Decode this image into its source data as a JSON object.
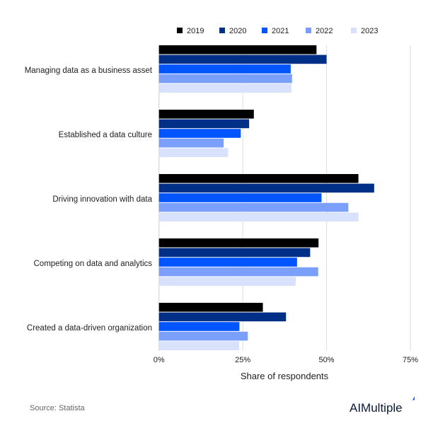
{
  "chart_data": {
    "type": "bar",
    "orientation": "horizontal",
    "categories": [
      "Managing data as a business asset",
      "Established a data culture",
      "Driving innovation with data",
      "Competing on data and analytics",
      "Created a data-driven organization"
    ],
    "series": [
      {
        "name": "2019",
        "color": "#000000",
        "values": [
          47,
          28.3,
          59.5,
          47.6,
          31
        ]
      },
      {
        "name": "2020",
        "color": "#002f87",
        "values": [
          50,
          26.9,
          64.2,
          45.1,
          37.9
        ]
      },
      {
        "name": "2021",
        "color": "#0055ff",
        "values": [
          39.3,
          24.4,
          48.5,
          41.2,
          24
        ]
      },
      {
        "name": "2022",
        "color": "#7aa0fb",
        "values": [
          39.7,
          19.3,
          56.5,
          47.5,
          26.5
        ]
      },
      {
        "name": "2023",
        "color": "#d8e2fc",
        "values": [
          39.5,
          20.6,
          59.5,
          40.8,
          23.9
        ]
      }
    ],
    "xlabel": "Share of respondents",
    "xlim": [
      0,
      75
    ],
    "xticks": [
      0,
      25,
      50,
      75
    ],
    "xtick_labels": [
      "0%",
      "25%",
      "50%",
      "75%"
    ],
    "grid": true,
    "legend_position": "top"
  },
  "source": "Source: Statista",
  "logo": "AIMultiple"
}
